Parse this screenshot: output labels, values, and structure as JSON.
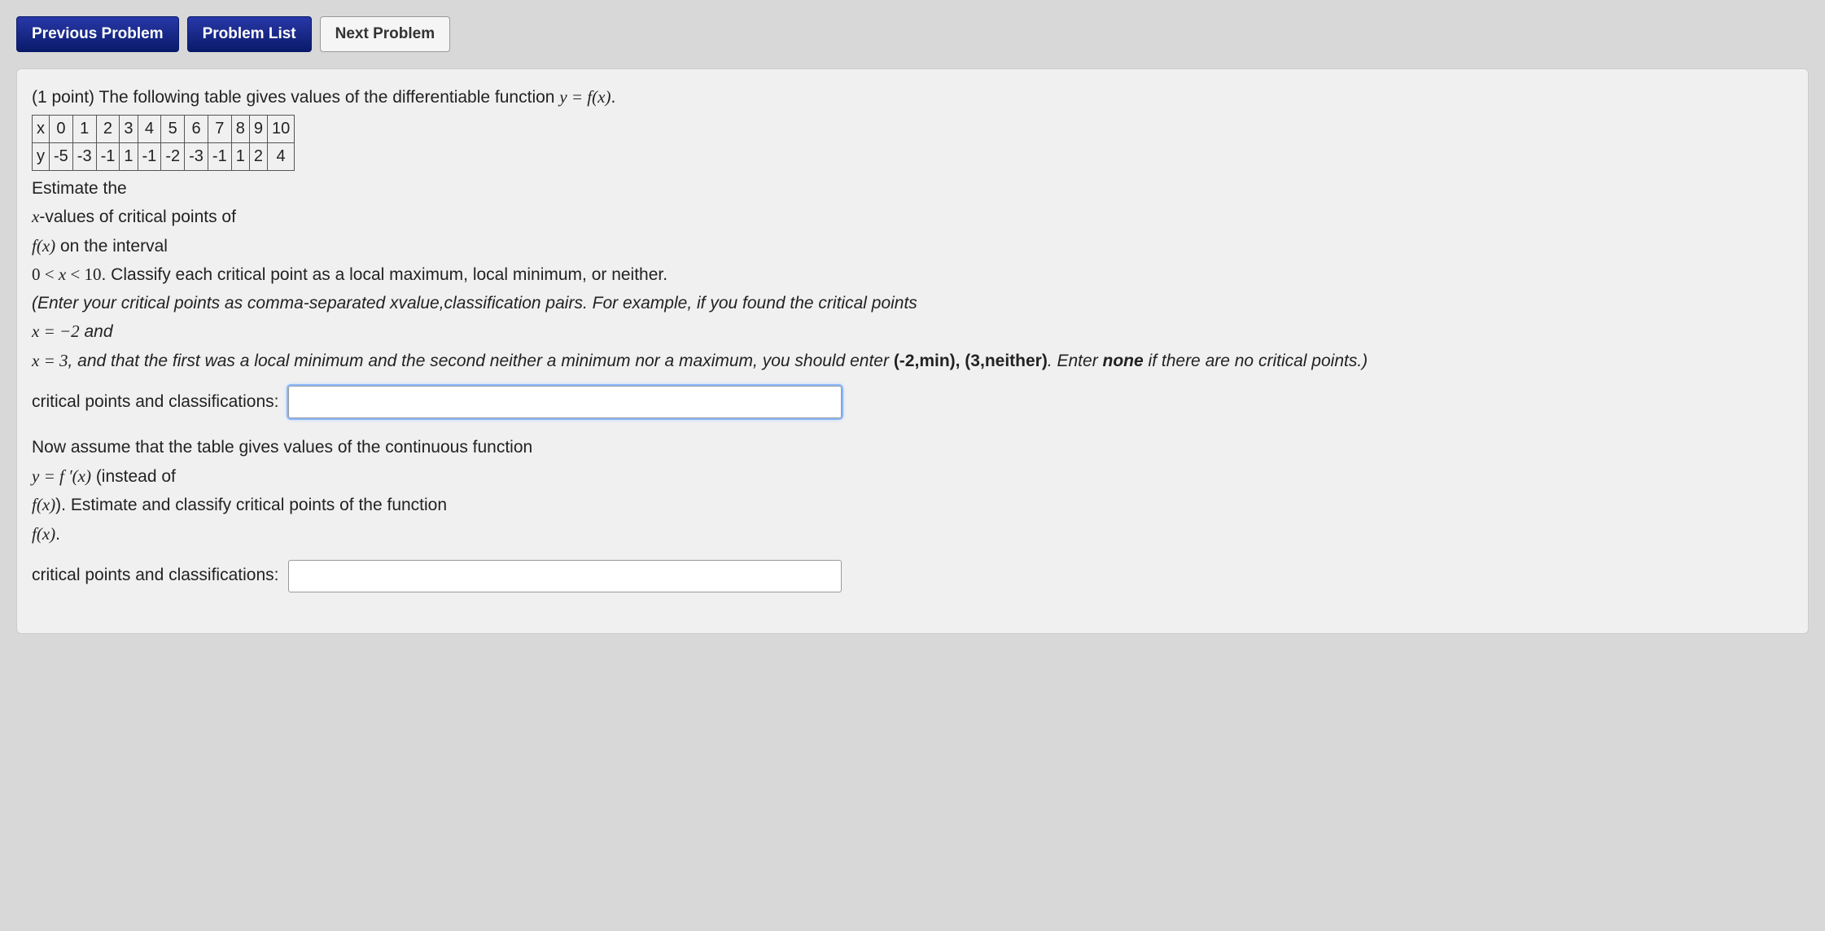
{
  "nav": {
    "previous": "Previous Problem",
    "list": "Problem List",
    "next": "Next Problem"
  },
  "problem": {
    "points_prefix": "(1 point) ",
    "intro": "The following table gives values of the differentiable function ",
    "intro_math": "y = f(x)",
    "intro_suffix": ".",
    "table": {
      "row_labels": [
        "x",
        "y"
      ],
      "x_values": [
        "0",
        "1",
        "2",
        "3",
        "4",
        "5",
        "6",
        "7",
        "8",
        "9",
        "10"
      ],
      "y_values": [
        "-5",
        "-3",
        "-1",
        "1",
        "-1",
        "-2",
        "-3",
        "-1",
        "1",
        "2",
        "4"
      ]
    },
    "line_estimate": "Estimate the",
    "line_xvalues_prefix": "x",
    "line_xvalues_rest": "-values of critical points of",
    "line_fx": "f(x)",
    "line_fx_rest": " on the interval",
    "line_interval": "0 < x < 10",
    "line_interval_rest": ". Classify each critical point as a local maximum, local minimum, or neither.",
    "hint_open": "(Enter your critical points as comma-separated xvalue,classification pairs. For example, if you found the critical points",
    "hint_x1": "x = −2",
    "hint_and": " and",
    "hint_x2": "x = 3",
    "hint_rest": ", and that the first was a local minimum and the second neither a minimum nor a maximum, you should enter ",
    "hint_bold": "(-2,min), (3,neither)",
    "hint_tail1": ". Enter ",
    "hint_none": "none",
    "hint_tail2": " if there are no critical points.)",
    "answer1_label": "critical points and classifications:",
    "part2_l1": "Now assume that the table gives values of the continuous function",
    "part2_math1": "y = f ′(x)",
    "part2_l1b": " (instead of",
    "part2_math2": "f(x)",
    "part2_l2": "). Estimate and classify critical points of the function",
    "part2_math3": "f(x)",
    "part2_l3": ".",
    "answer2_label": "critical points and classifications:"
  },
  "style": {
    "primary_btn_bg": "#1a2a8a",
    "body_bg": "#d8d8d8",
    "box_bg": "#f0f0f0",
    "input_focus": "#8ab8ff"
  }
}
